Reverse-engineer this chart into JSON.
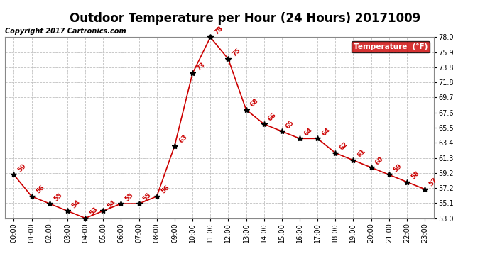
{
  "title": "Outdoor Temperature per Hour (24 Hours) 20171009",
  "copyright": "Copyright 2017 Cartronics.com",
  "legend_label": "Temperature  (°F)",
  "hours": [
    "00:00",
    "01:00",
    "02:00",
    "03:00",
    "04:00",
    "05:00",
    "06:00",
    "07:00",
    "08:00",
    "09:00",
    "10:00",
    "11:00",
    "12:00",
    "13:00",
    "14:00",
    "15:00",
    "16:00",
    "17:00",
    "18:00",
    "19:00",
    "20:00",
    "21:00",
    "22:00",
    "23:00"
  ],
  "temps": [
    59,
    56,
    55,
    54,
    53,
    54,
    55,
    55,
    56,
    63,
    73,
    78,
    75,
    68,
    66,
    65,
    64,
    64,
    62,
    61,
    60,
    59,
    58,
    57
  ],
  "ylim": [
    53.0,
    78.0
  ],
  "yticks": [
    53.0,
    55.1,
    57.2,
    59.2,
    61.3,
    63.4,
    65.5,
    67.6,
    69.7,
    71.8,
    73.8,
    75.9,
    78.0
  ],
  "line_color": "#cc0000",
  "marker_color": "#000000",
  "label_color": "#cc0000",
  "bg_color": "#ffffff",
  "grid_color": "#c0c0c0",
  "title_fontsize": 12,
  "legend_bg": "#cc0000",
  "legend_text_color": "#ffffff",
  "annotation_fontsize": 6.5,
  "tick_fontsize": 7.0,
  "copyright_fontsize": 7.0
}
